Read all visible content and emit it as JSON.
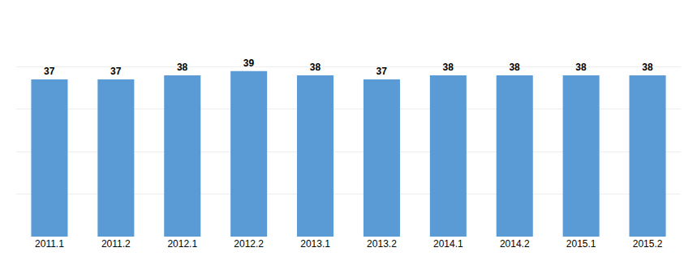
{
  "chart_data": {
    "type": "bar",
    "categories": [
      "2011.1",
      "2011.2",
      "2012.1",
      "2012.2",
      "2013.1",
      "2013.2",
      "2014.1",
      "2014.2",
      "2015.1",
      "2015.2"
    ],
    "values": [
      37,
      37,
      38,
      39,
      38,
      37,
      38,
      38,
      38,
      38
    ],
    "color": "#5B9BD5",
    "ylim": [
      0,
      50
    ],
    "yticks": [
      0,
      10,
      20,
      30,
      40,
      50
    ],
    "grid": true,
    "data_labels": true,
    "tick_labels": "x"
  }
}
